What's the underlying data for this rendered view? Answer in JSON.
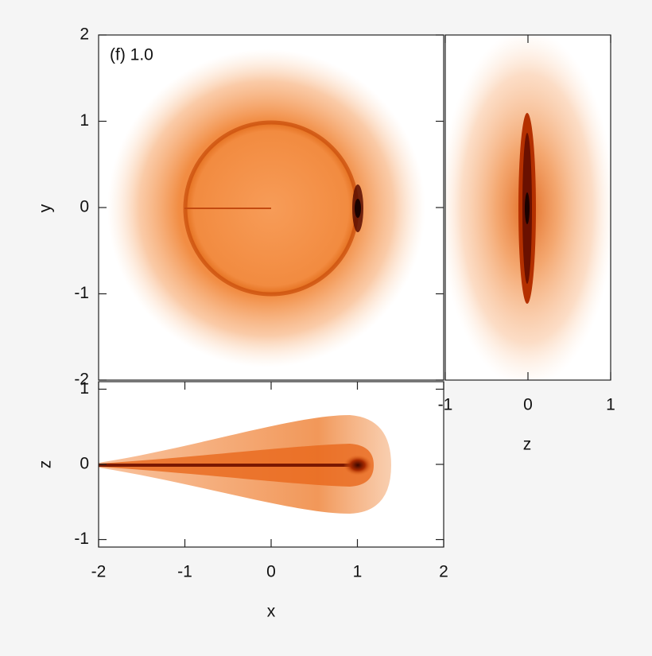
{
  "chart_data": [
    {
      "type": "density",
      "ylabel": "y",
      "annotation": "(f) 1.0",
      "xlim": [
        -2,
        2
      ],
      "ylim": [
        -2,
        2
      ],
      "yticks": [
        -2,
        -1,
        0,
        1,
        2
      ]
    },
    {
      "type": "density",
      "xlabel": "z",
      "xlim": [
        -1,
        1
      ],
      "ylim": [
        -2,
        2
      ],
      "xticks": [
        -1,
        0,
        1
      ]
    },
    {
      "type": "density",
      "xlabel": "x",
      "ylabel": "z",
      "xlim": [
        -2,
        2
      ],
      "ylim": [
        -1.1,
        1.1
      ],
      "xticks": [
        -2,
        -1,
        0,
        1,
        2
      ],
      "yticks": [
        -1,
        0,
        1
      ]
    }
  ]
}
